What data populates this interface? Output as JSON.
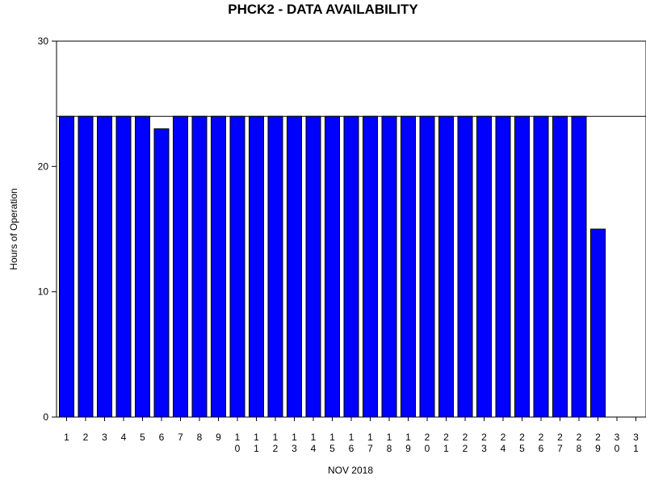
{
  "chart_data": {
    "type": "bar",
    "title": "PHCK2 - DATA AVAILABILITY",
    "xlabel": "NOV 2018",
    "ylabel": "Hours of Operation",
    "ylim": [
      0,
      30
    ],
    "yticks": [
      0,
      10,
      20,
      30
    ],
    "reference_line": 24,
    "categories": [
      "1",
      "2",
      "3",
      "4",
      "5",
      "6",
      "7",
      "8",
      "9",
      "10",
      "11",
      "12",
      "13",
      "14",
      "15",
      "16",
      "17",
      "18",
      "19",
      "20",
      "21",
      "22",
      "23",
      "24",
      "25",
      "26",
      "27",
      "28",
      "29",
      "30",
      "31"
    ],
    "values": [
      24,
      24,
      24,
      24,
      24,
      23,
      24,
      24,
      24,
      24,
      24,
      24,
      24,
      24,
      24,
      24,
      24,
      24,
      24,
      24,
      24,
      24,
      24,
      24,
      24,
      24,
      24,
      24,
      15,
      0,
      0
    ],
    "colors": {
      "bar": "#0000ff",
      "bar_outline": "#000000"
    }
  }
}
